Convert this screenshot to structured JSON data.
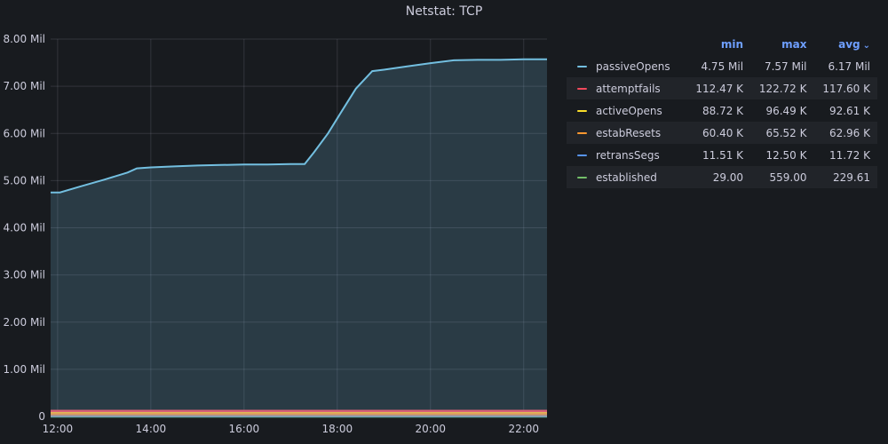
{
  "panel": {
    "title": "Netstat: TCP"
  },
  "chart_data": {
    "type": "area",
    "title": "Netstat: TCP",
    "x_ticks": [
      "12:00",
      "14:00",
      "16:00",
      "18:00",
      "20:00",
      "22:00"
    ],
    "x_tick_hours": [
      12,
      14,
      16,
      18,
      20,
      22
    ],
    "xlim_hours": [
      11.85,
      22.5
    ],
    "y_ticks": [
      "0",
      "1.00 Mil",
      "2.00 Mil",
      "3.00 Mil",
      "4.00 Mil",
      "5.00 Mil",
      "6.00 Mil",
      "7.00 Mil",
      "8.00 Mil"
    ],
    "y_tick_values": [
      0,
      1000000,
      2000000,
      3000000,
      4000000,
      5000000,
      6000000,
      7000000,
      8000000
    ],
    "ylim": [
      0,
      8000000
    ],
    "grid": true,
    "legend_placement": "right",
    "series": [
      {
        "name": "passiveOpens",
        "color": "#73bfe0",
        "fill": true,
        "x_hours": [
          11.85,
          12.05,
          12.5,
          13.0,
          13.5,
          13.7,
          14.0,
          14.5,
          15.0,
          15.5,
          16.0,
          16.5,
          17.0,
          17.1,
          17.3,
          17.5,
          17.8,
          18.1,
          18.4,
          18.75,
          19.0,
          19.5,
          20.0,
          20.5,
          21.0,
          21.5,
          22.0,
          22.5
        ],
        "values": [
          4750000,
          4750000,
          4880000,
          5020000,
          5170000,
          5260000,
          5280000,
          5300000,
          5320000,
          5330000,
          5340000,
          5340000,
          5350000,
          5350000,
          5350000,
          5600000,
          6000000,
          6480000,
          6950000,
          7320000,
          7350000,
          7420000,
          7490000,
          7550000,
          7560000,
          7560000,
          7570000,
          7570000
        ]
      },
      {
        "name": "attemptfails",
        "color": "#f2495c",
        "x_hours": [
          11.85,
          22.5
        ],
        "values": [
          117600,
          117600
        ]
      },
      {
        "name": "activeOpens",
        "color": "#fade2a",
        "x_hours": [
          11.85,
          22.5
        ],
        "values": [
          92610,
          92610
        ]
      },
      {
        "name": "estabResets",
        "color": "#ff9830",
        "x_hours": [
          11.85,
          22.5
        ],
        "values": [
          62960,
          62960
        ]
      },
      {
        "name": "retransSegs",
        "color": "#5794f2",
        "x_hours": [
          11.85,
          22.5
        ],
        "values": [
          11720,
          11720
        ]
      },
      {
        "name": "established",
        "color": "#73bf69",
        "x_hours": [
          11.85,
          22.5
        ],
        "values": [
          229.61,
          229.61
        ]
      }
    ]
  },
  "legend": {
    "headers": {
      "min": "min",
      "max": "max",
      "avg": "avg"
    },
    "sort_indicator": "⌄",
    "rows": [
      {
        "name": "passiveOpens",
        "color": "#73bfe0",
        "min": "4.75 Mil",
        "max": "7.57 Mil",
        "avg": "6.17 Mil"
      },
      {
        "name": "attemptfails",
        "color": "#f2495c",
        "min": "112.47 K",
        "max": "122.72 K",
        "avg": "117.60 K"
      },
      {
        "name": "activeOpens",
        "color": "#fade2a",
        "min": "88.72 K",
        "max": "96.49 K",
        "avg": "92.61 K"
      },
      {
        "name": "estabResets",
        "color": "#ff9830",
        "min": "60.40 K",
        "max": "65.52 K",
        "avg": "62.96 K"
      },
      {
        "name": "retransSegs",
        "color": "#5794f2",
        "min": "11.51 K",
        "max": "12.50 K",
        "avg": "11.72 K"
      },
      {
        "name": "established",
        "color": "#73bf69",
        "min": "29.00",
        "max": "559.00",
        "avg": "229.61"
      }
    ]
  }
}
